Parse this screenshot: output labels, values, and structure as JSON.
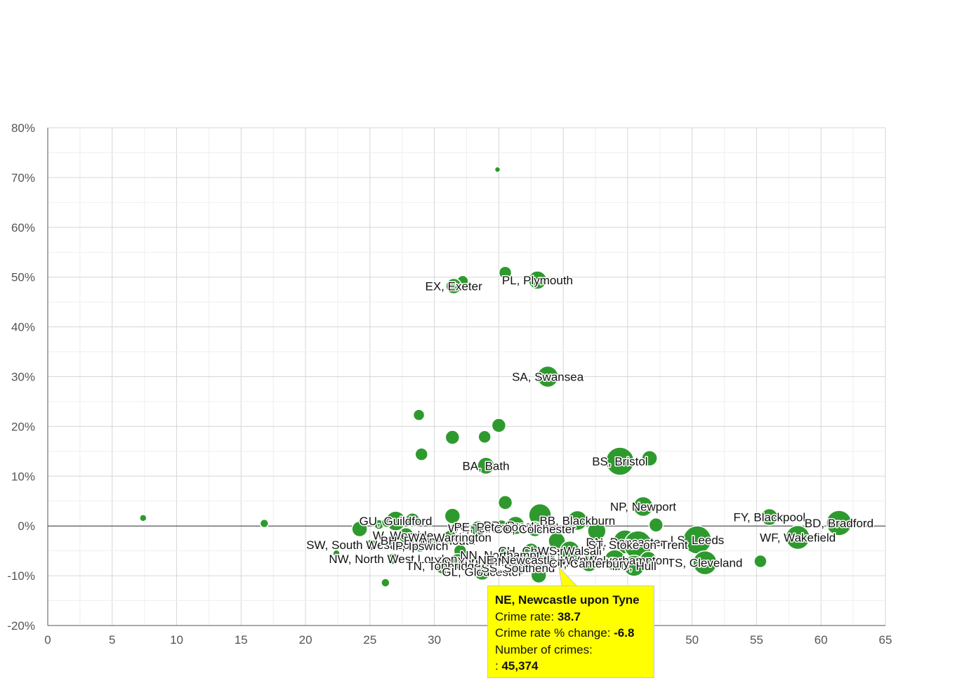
{
  "chart_data": {
    "type": "scatter",
    "title": "",
    "xlabel": "",
    "ylabel": "",
    "xlim": [
      0,
      65
    ],
    "ylim": [
      -20,
      80
    ],
    "x_ticks": [
      0,
      5,
      10,
      15,
      20,
      25,
      30,
      35,
      40,
      45,
      50,
      55,
      60,
      65
    ],
    "x_tick_labels": [
      "0",
      "5",
      "10",
      "15",
      "20",
      "25",
      "30",
      "35",
      "40",
      "45",
      "50",
      "55",
      "60",
      "65"
    ],
    "y_ticks": [
      -20,
      -10,
      0,
      10,
      20,
      30,
      40,
      50,
      60,
      70,
      80
    ],
    "y_tick_labels": [
      "-20%",
      "-10%",
      "0%",
      "10%",
      "20%",
      "30%",
      "40%",
      "50%",
      "60%",
      "70%",
      "80%"
    ],
    "grid": true,
    "legend": "none",
    "point_color": "#2e9a2e",
    "points": [
      {
        "x": 7.4,
        "y": 1.6,
        "r": 5,
        "label": ""
      },
      {
        "x": 16.8,
        "y": 0.5,
        "r": 6,
        "label": ""
      },
      {
        "x": 22.4,
        "y": -5.5,
        "r": 5,
        "label": ""
      },
      {
        "x": 26.2,
        "y": -11.4,
        "r": 6,
        "label": ""
      },
      {
        "x": 34.9,
        "y": 71.6,
        "r": 4,
        "label": ""
      },
      {
        "x": 35.5,
        "y": 50.9,
        "r": 9,
        "label": ""
      },
      {
        "x": 32.2,
        "y": 49.2,
        "r": 8,
        "label": ""
      },
      {
        "x": 31.5,
        "y": 48.2,
        "r": 11,
        "label": "EX, Exeter"
      },
      {
        "x": 38.0,
        "y": 49.4,
        "r": 13,
        "label": "PL, Plymouth"
      },
      {
        "x": 38.8,
        "y": 30.0,
        "r": 15,
        "label": "SA, Swansea"
      },
      {
        "x": 28.8,
        "y": 22.3,
        "r": 8,
        "label": ""
      },
      {
        "x": 35.0,
        "y": 20.2,
        "r": 10,
        "label": ""
      },
      {
        "x": 31.4,
        "y": 17.8,
        "r": 10,
        "label": ""
      },
      {
        "x": 33.9,
        "y": 17.9,
        "r": 9,
        "label": ""
      },
      {
        "x": 29.0,
        "y": 14.4,
        "r": 9,
        "label": ""
      },
      {
        "x": 34.0,
        "y": 12.1,
        "r": 12,
        "label": "BA, Bath"
      },
      {
        "x": 44.4,
        "y": 13.0,
        "r": 20,
        "label": "BS, Bristol"
      },
      {
        "x": 46.7,
        "y": 13.6,
        "r": 11,
        "label": ""
      },
      {
        "x": 35.5,
        "y": 4.7,
        "r": 10,
        "label": ""
      },
      {
        "x": 46.2,
        "y": 3.9,
        "r": 14,
        "label": "NP, Newport"
      },
      {
        "x": 47.2,
        "y": 0.2,
        "r": 10,
        "label": ""
      },
      {
        "x": 56.0,
        "y": 1.8,
        "r": 12,
        "label": "FY, Blackpool"
      },
      {
        "x": 61.4,
        "y": 0.6,
        "r": 18,
        "label": "BD, Bradford"
      },
      {
        "x": 58.2,
        "y": -2.3,
        "r": 17,
        "label": "WF, Wakefield"
      },
      {
        "x": 50.4,
        "y": -2.8,
        "r": 20,
        "label": "LS, Leeds"
      },
      {
        "x": 51.0,
        "y": -7.4,
        "r": 17,
        "label": "TS, Cleveland"
      },
      {
        "x": 55.3,
        "y": -7.1,
        "r": 9,
        "label": ""
      },
      {
        "x": 27.0,
        "y": 1.0,
        "r": 14,
        "label": "GU, Guildford"
      },
      {
        "x": 28.3,
        "y": 1.2,
        "r": 10,
        "label": ""
      },
      {
        "x": 24.2,
        "y": -0.6,
        "r": 11,
        "label": ""
      },
      {
        "x": 25.7,
        "y": 0.3,
        "r": 7,
        "label": ""
      },
      {
        "x": 26.3,
        "y": 0.7,
        "r": 7,
        "label": ""
      },
      {
        "x": 27.8,
        "y": -1.9,
        "r": 11,
        "label": "W, Wembley"
      },
      {
        "x": 25.1,
        "y": -3.8,
        "r": 8,
        "label": "SW, South West London"
      },
      {
        "x": 26.8,
        "y": -6.6,
        "r": 8,
        "label": "NW, North West London"
      },
      {
        "x": 31.4,
        "y": 2.0,
        "r": 11,
        "label": ""
      },
      {
        "x": 29.5,
        "y": -2.9,
        "r": 9,
        "label": "BH, Bournemouth"
      },
      {
        "x": 28.9,
        "y": -4.0,
        "r": 9,
        "label": "IP, Ipswich"
      },
      {
        "x": 31.2,
        "y": -2.3,
        "r": 10,
        "label": "WA, Warrington"
      },
      {
        "x": 32.0,
        "y": -5.0,
        "r": 9,
        "label": ""
      },
      {
        "x": 33.4,
        "y": -0.5,
        "r": 11,
        "label": "WV, Telford"
      },
      {
        "x": 31.8,
        "y": -7.1,
        "r": 11,
        "label": "YO, York"
      },
      {
        "x": 30.7,
        "y": -8.0,
        "r": 12,
        "label": "TN, Tonbridge"
      },
      {
        "x": 33.7,
        "y": -9.2,
        "r": 12,
        "label": "GL, Gloucester"
      },
      {
        "x": 36.3,
        "y": 0.1,
        "r": 13,
        "label": "PR, Preston"
      },
      {
        "x": 35.2,
        "y": -0.2,
        "r": 10,
        "label": "PE, Peterborough"
      },
      {
        "x": 38.2,
        "y": 2.2,
        "r": 16,
        "label": ""
      },
      {
        "x": 41.1,
        "y": 1.1,
        "r": 14,
        "label": "BB, Blackburn"
      },
      {
        "x": 37.8,
        "y": -0.6,
        "r": 11,
        "label": "CO, Colchester"
      },
      {
        "x": 39.5,
        "y": -3.0,
        "r": 12,
        "label": ""
      },
      {
        "x": 37.5,
        "y": -5.0,
        "r": 11,
        "label": "CH, Chester"
      },
      {
        "x": 35.6,
        "y": -5.8,
        "r": 11,
        "label": "NN, Northampton"
      },
      {
        "x": 37.0,
        "y": -7.2,
        "r": 11,
        "label": "RM, Romford"
      },
      {
        "x": 36.5,
        "y": -8.4,
        "r": 11,
        "label": "SS, Southend"
      },
      {
        "x": 38.7,
        "y": -6.8,
        "r": 13,
        "label": "NE, Newcastle upon Tyne"
      },
      {
        "x": 38.1,
        "y": -9.9,
        "r": 11,
        "label": ""
      },
      {
        "x": 40.5,
        "y": -5.0,
        "r": 14,
        "label": "WS, Walsall"
      },
      {
        "x": 42.6,
        "y": -1.0,
        "r": 13,
        "label": ""
      },
      {
        "x": 44.8,
        "y": -3.2,
        "r": 17,
        "label": "DN, Doncaster"
      },
      {
        "x": 45.8,
        "y": -3.8,
        "r": 20,
        "label": "ST, Stoke-on-Trent"
      },
      {
        "x": 44.0,
        "y": -6.9,
        "r": 15,
        "label": "WV, Wolverhampton"
      },
      {
        "x": 45.5,
        "y": -8.0,
        "r": 15,
        "label": "HU, Hull"
      },
      {
        "x": 46.6,
        "y": -6.8,
        "r": 12,
        "label": ""
      },
      {
        "x": 42.0,
        "y": -7.5,
        "r": 12,
        "label": "CT, Canterbury"
      }
    ],
    "labels_shown": [
      "EX, Exeter",
      "PL, Plymouth",
      "SA, Swansea",
      "BA, Bath",
      "BS, Bristol",
      "NP, Newport",
      "FY, Blackpool",
      "BD, Bradford",
      "WF, Wakefield",
      "LS, Leeds",
      "TS, Cleveland",
      "GU, Guildford",
      "PE, Peterborough",
      "BB, Blackburn",
      "CO, Colchester",
      "WS, Walsall",
      "DN, Doncaster",
      "RM, Romford",
      "TN, Tonbridge",
      "GL, Gloucester",
      "YO, York",
      "W, Wembley",
      "SW, South West London",
      "NW, North West London",
      "IP, Ipswich"
    ]
  },
  "tooltip": {
    "title": "NE, Newcastle upon Tyne",
    "rate_label": "Crime rate:",
    "rate_value": "38.7",
    "change_label": "Crime rate % change:",
    "change_value": "-6.8",
    "count_label": "Number of crimes:",
    "count_prefix": ":",
    "count_value": "45,374",
    "background": "#ffff00"
  }
}
